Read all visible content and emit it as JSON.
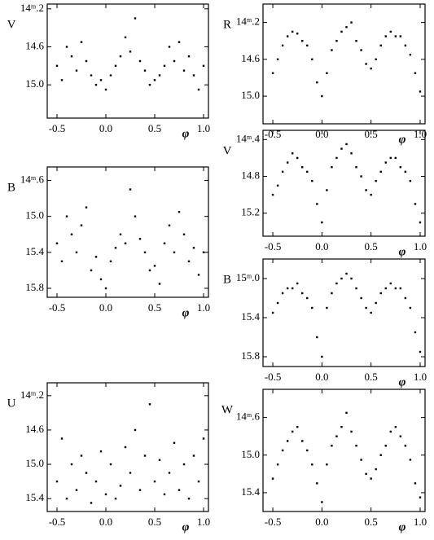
{
  "chart_data": [
    {
      "type": "scatter",
      "ylabel": "V",
      "xlabel": "φ",
      "color": "#000000",
      "x": [
        -0.5,
        -0.45,
        -0.4,
        -0.35,
        -0.3,
        -0.25,
        -0.2,
        -0.15,
        -0.1,
        -0.05,
        0,
        0.05,
        0.1,
        0.15,
        0.2,
        0.25,
        0.3,
        0.35,
        0.4,
        0.45,
        0.5,
        0.55,
        0.6,
        0.65,
        0.7,
        0.75,
        0.8,
        0.85,
        0.9,
        0.95,
        1.0
      ],
      "y": [
        14.8,
        14.95,
        14.6,
        14.7,
        14.85,
        14.55,
        14.75,
        14.9,
        15.0,
        14.95,
        15.05,
        14.9,
        14.8,
        14.7,
        14.5,
        14.65,
        14.3,
        14.75,
        14.85,
        15.0,
        14.95,
        14.9,
        14.8,
        14.6,
        14.75,
        14.55,
        14.85,
        14.7,
        14.9,
        15.05,
        14.8
      ],
      "xlim": [
        -0.6,
        1.05
      ],
      "ylim": [
        15.35,
        14.15
      ],
      "xticks": [
        -0.5,
        {
          "value": 0,
          "label": "0.0"
        },
        0.5,
        {
          "value": 1,
          "label": "1.0"
        }
      ],
      "yticks": [
        {
          "value": 14.2,
          "label": "14ᵐ.2"
        },
        14.6,
        {
          "value": 15,
          "label": "15.0"
        }
      ]
    },
    {
      "type": "scatter",
      "ylabel": "B",
      "xlabel": "φ",
      "color": "#000000",
      "x": [
        -0.5,
        -0.45,
        -0.4,
        -0.35,
        -0.3,
        -0.25,
        -0.2,
        -0.15,
        -0.1,
        -0.05,
        0,
        0.05,
        0.1,
        0.15,
        0.2,
        0.25,
        0.3,
        0.35,
        0.4,
        0.45,
        0.5,
        0.55,
        0.6,
        0.65,
        0.7,
        0.75,
        0.8,
        0.85,
        0.9,
        0.95,
        1.0
      ],
      "y": [
        15.3,
        15.5,
        15.0,
        15.2,
        15.4,
        15.1,
        14.9,
        15.6,
        15.45,
        15.7,
        15.8,
        15.5,
        15.35,
        15.2,
        15.3,
        14.7,
        15.0,
        15.25,
        15.4,
        15.6,
        15.55,
        15.75,
        15.3,
        15.1,
        15.4,
        14.95,
        15.2,
        15.5,
        15.35,
        15.65,
        15.4
      ],
      "xlim": [
        -0.6,
        1.05
      ],
      "ylim": [
        15.9,
        14.45
      ],
      "xticks": [
        -0.5,
        {
          "value": 0,
          "label": "0.0"
        },
        0.5,
        {
          "value": 1,
          "label": "1.0"
        }
      ],
      "yticks": [
        {
          "value": 14.6,
          "label": "14ᵐ.6"
        },
        {
          "value": 15,
          "label": "15.0"
        },
        15.4,
        15.8
      ]
    },
    {
      "type": "scatter",
      "ylabel": "U",
      "xlabel": "φ",
      "color": "#000000",
      "x": [
        -0.5,
        -0.45,
        -0.4,
        -0.35,
        -0.3,
        -0.25,
        -0.2,
        -0.15,
        -0.1,
        -0.05,
        0,
        0.05,
        0.1,
        0.15,
        0.2,
        0.25,
        0.3,
        0.35,
        0.4,
        0.45,
        0.5,
        0.55,
        0.6,
        0.65,
        0.7,
        0.75,
        0.8,
        0.85,
        0.9,
        0.95,
        1.0
      ],
      "y": [
        15.2,
        14.7,
        15.4,
        15.0,
        15.3,
        14.9,
        15.1,
        15.45,
        15.2,
        14.85,
        15.35,
        15.0,
        15.4,
        15.25,
        14.8,
        15.1,
        14.6,
        15.3,
        14.9,
        14.3,
        15.2,
        14.95,
        15.35,
        15.1,
        14.75,
        15.3,
        15.0,
        15.4,
        14.9,
        15.2,
        14.7
      ],
      "xlim": [
        -0.6,
        1.05
      ],
      "ylim": [
        15.55,
        14.05
      ],
      "xticks": [
        -0.5,
        {
          "value": 0,
          "label": "0.0"
        },
        0.5,
        {
          "value": 1,
          "label": "1.0"
        }
      ],
      "yticks": [
        {
          "value": 14.2,
          "label": "14ᵐ.2"
        },
        14.6,
        {
          "value": 15,
          "label": "15.0"
        },
        15.4
      ]
    },
    {
      "type": "scatter",
      "ylabel": "R",
      "xlabel": "φ",
      "color": "#000000",
      "x": [
        -0.5,
        -0.45,
        -0.4,
        -0.35,
        -0.3,
        -0.25,
        -0.2,
        -0.15,
        -0.1,
        -0.05,
        0,
        0.05,
        0.1,
        0.15,
        0.2,
        0.25,
        0.3,
        0.35,
        0.4,
        0.45,
        0.5,
        0.55,
        0.6,
        0.65,
        0.7,
        0.75,
        0.8,
        0.85,
        0.9,
        0.95,
        1.0
      ],
      "y": [
        14.75,
        14.6,
        14.45,
        14.35,
        14.3,
        14.32,
        14.4,
        14.45,
        14.6,
        14.85,
        15.0,
        14.75,
        14.5,
        14.4,
        14.3,
        14.25,
        14.2,
        14.4,
        14.5,
        14.65,
        14.7,
        14.6,
        14.45,
        14.35,
        14.3,
        14.35,
        14.35,
        14.45,
        14.55,
        14.75,
        14.95
      ],
      "xlim": [
        -0.6,
        1.05
      ],
      "ylim": [
        15.3,
        14.0
      ],
      "xticks": [
        -0.5,
        {
          "value": 0,
          "label": "0.0"
        },
        0.5,
        {
          "value": 1,
          "label": "1.0"
        }
      ],
      "yticks": [
        {
          "value": 14.2,
          "label": "14ᵐ.2"
        },
        14.6,
        {
          "value": 15,
          "label": "15.0"
        }
      ]
    },
    {
      "type": "scatter",
      "ylabel": "V",
      "xlabel": "φ",
      "color": "#000000",
      "x": [
        -0.5,
        -0.45,
        -0.4,
        -0.35,
        -0.3,
        -0.25,
        -0.2,
        -0.15,
        -0.1,
        -0.05,
        0,
        0.05,
        0.1,
        0.15,
        0.2,
        0.25,
        0.3,
        0.35,
        0.4,
        0.45,
        0.5,
        0.55,
        0.6,
        0.65,
        0.7,
        0.75,
        0.8,
        0.85,
        0.9,
        0.95,
        1.0
      ],
      "y": [
        15.0,
        14.9,
        14.75,
        14.65,
        14.55,
        14.6,
        14.7,
        14.75,
        14.85,
        15.1,
        15.3,
        14.95,
        14.7,
        14.6,
        14.5,
        14.45,
        14.55,
        14.7,
        14.8,
        14.95,
        15.0,
        14.85,
        14.75,
        14.65,
        14.6,
        14.6,
        14.7,
        14.75,
        14.85,
        15.1,
        15.3
      ],
      "xlim": [
        -0.6,
        1.05
      ],
      "ylim": [
        15.45,
        14.3
      ],
      "xticks": [
        -0.5,
        {
          "value": 0,
          "label": "0.0"
        },
        0.5,
        {
          "value": 1,
          "label": "1.0"
        }
      ],
      "yticks": [
        {
          "value": 14.4,
          "label": "14ᵐ.4"
        },
        14.8,
        15.2
      ]
    },
    {
      "type": "scatter",
      "ylabel": "B",
      "xlabel": "φ",
      "color": "#000000",
      "x": [
        -0.5,
        -0.45,
        -0.4,
        -0.35,
        -0.3,
        -0.25,
        -0.2,
        -0.15,
        -0.1,
        -0.05,
        0,
        0.05,
        0.1,
        0.15,
        0.2,
        0.25,
        0.3,
        0.35,
        0.4,
        0.45,
        0.5,
        0.55,
        0.6,
        0.65,
        0.7,
        0.75,
        0.8,
        0.85,
        0.9,
        0.95,
        1.0
      ],
      "y": [
        15.35,
        15.25,
        15.15,
        15.1,
        15.1,
        15.05,
        15.15,
        15.2,
        15.3,
        15.6,
        15.8,
        15.3,
        15.15,
        15.05,
        15.0,
        14.95,
        15.0,
        15.1,
        15.2,
        15.3,
        15.35,
        15.25,
        15.15,
        15.1,
        15.05,
        15.1,
        15.1,
        15.2,
        15.3,
        15.55,
        15.75
      ],
      "xlim": [
        -0.6,
        1.05
      ],
      "ylim": [
        15.9,
        14.8
      ],
      "xticks": [
        -0.5,
        {
          "value": 0,
          "label": "0.0"
        },
        0.5,
        {
          "value": 1,
          "label": "1.0"
        }
      ],
      "yticks": [
        {
          "value": 15,
          "label": "15ᵐ.0"
        },
        15.4,
        15.8
      ]
    },
    {
      "type": "scatter",
      "ylabel": "W",
      "xlabel": "φ",
      "color": "#000000",
      "x": [
        -0.5,
        -0.45,
        -0.4,
        -0.35,
        -0.3,
        -0.25,
        -0.2,
        -0.15,
        -0.1,
        -0.05,
        0,
        0.05,
        0.1,
        0.15,
        0.2,
        0.25,
        0.3,
        0.35,
        0.4,
        0.45,
        0.5,
        0.55,
        0.6,
        0.65,
        0.7,
        0.75,
        0.8,
        0.85,
        0.9,
        0.95,
        1.0
      ],
      "y": [
        15.25,
        15.1,
        14.95,
        14.85,
        14.75,
        14.7,
        14.85,
        14.95,
        15.1,
        15.3,
        15.5,
        15.1,
        14.9,
        14.8,
        14.7,
        14.55,
        14.75,
        14.9,
        15.05,
        15.2,
        15.25,
        15.15,
        15.0,
        14.9,
        14.75,
        14.7,
        14.8,
        14.9,
        15.05,
        15.3,
        15.45
      ],
      "xlim": [
        -0.6,
        1.05
      ],
      "ylim": [
        15.6,
        14.3
      ],
      "xticks": [
        -0.5,
        {
          "value": 0,
          "label": "0.0"
        },
        0.5,
        {
          "value": 1,
          "label": "1.0"
        }
      ],
      "yticks": [
        {
          "value": 14.6,
          "label": "14ᵐ.6"
        },
        {
          "value": 15,
          "label": "15.0"
        },
        15.4
      ]
    }
  ]
}
